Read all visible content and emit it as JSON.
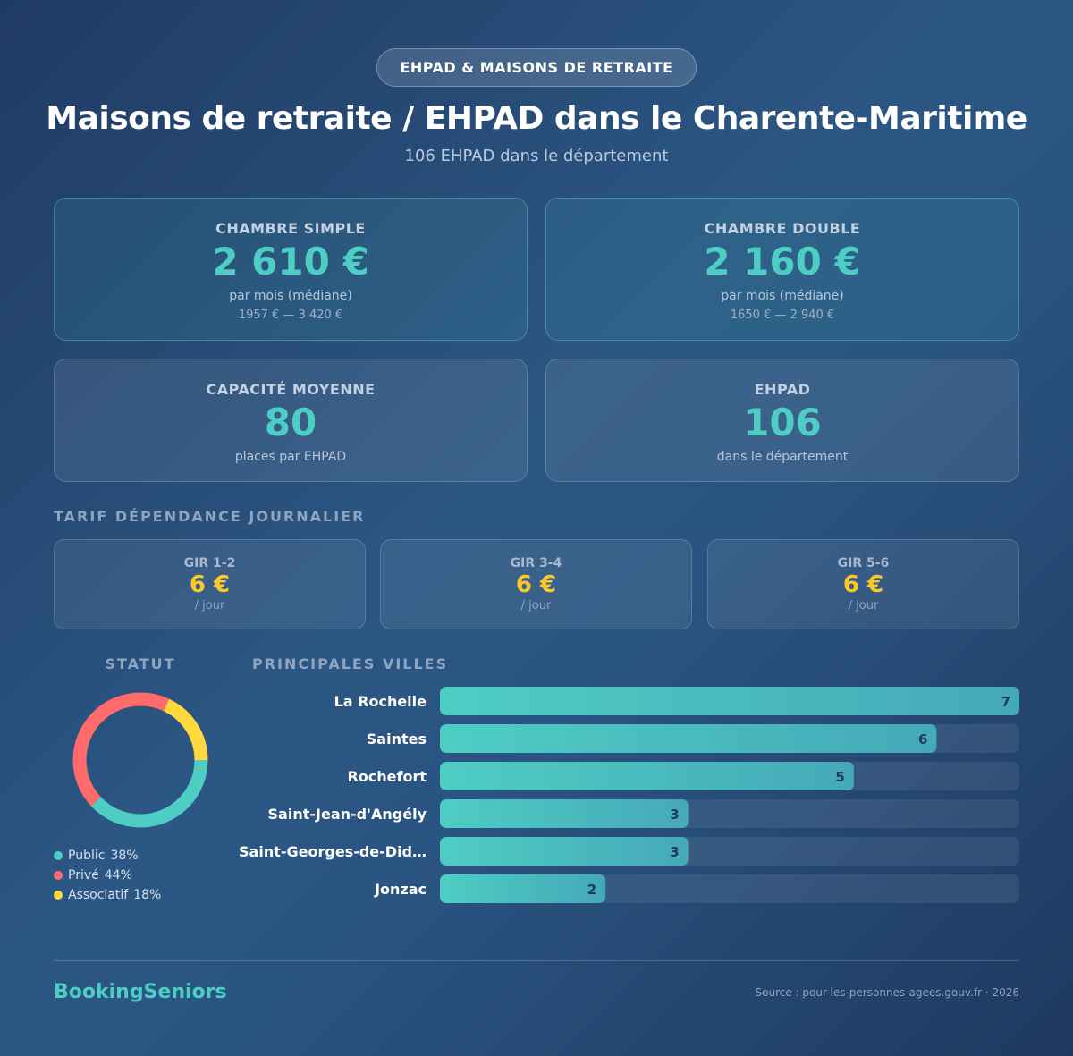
{
  "header": {
    "badge": "EHPAD & MAISONS DE RETRAITE",
    "title": "Maisons de retraite / EHPAD dans le Charente-Maritime",
    "subtitle": "106 EHPAD dans le département"
  },
  "price_cards": [
    {
      "label": "CHAMBRE SIMPLE",
      "value": "2 610 €",
      "unit": "par mois (médiane)",
      "range": "1957 € — 3 420 €"
    },
    {
      "label": "CHAMBRE DOUBLE",
      "value": "2 160 €",
      "unit": "par mois (médiane)",
      "range": "1650 € — 2 940 €"
    }
  ],
  "stat_cards": [
    {
      "label": "CAPACITÉ MOYENNE",
      "value": 80,
      "unit": "places par EHPAD"
    },
    {
      "label": "EHPAD",
      "value": 106,
      "unit": "dans le département"
    }
  ],
  "tariff": {
    "title": "TARIF DÉPENDANCE JOURNALIER",
    "items": [
      {
        "label": "GIR 1-2",
        "value": "6 €",
        "unit": "/ jour"
      },
      {
        "label": "GIR 3-4",
        "value": "6 €",
        "unit": "/ jour"
      },
      {
        "label": "GIR 5-6",
        "value": "6 €",
        "unit": "/ jour"
      }
    ]
  },
  "chart_data": [
    {
      "type": "pie",
      "title": "STATUT",
      "categories": [
        "Public",
        "Privé",
        "Associatif"
      ],
      "values": [
        38,
        44,
        18
      ],
      "value_labels": [
        "38%",
        "44%",
        "18%"
      ],
      "colors": [
        "#4ecdc4",
        "#ff6b6b",
        "#ffd93d"
      ]
    },
    {
      "type": "bar",
      "title": "PRINCIPALES VILLES",
      "categories": [
        "La Rochelle",
        "Saintes",
        "Rochefort",
        "Saint-Jean-d'Angély",
        "Saint-Georges-de-Did…",
        "Jonzac"
      ],
      "values": [
        7,
        6,
        5,
        3,
        3,
        2
      ],
      "color": "#4ecdc4"
    }
  ],
  "footer": {
    "brand": "BookingSeniors",
    "source": "Source : pour-les-personnes-agees.gouv.fr · 2026"
  }
}
